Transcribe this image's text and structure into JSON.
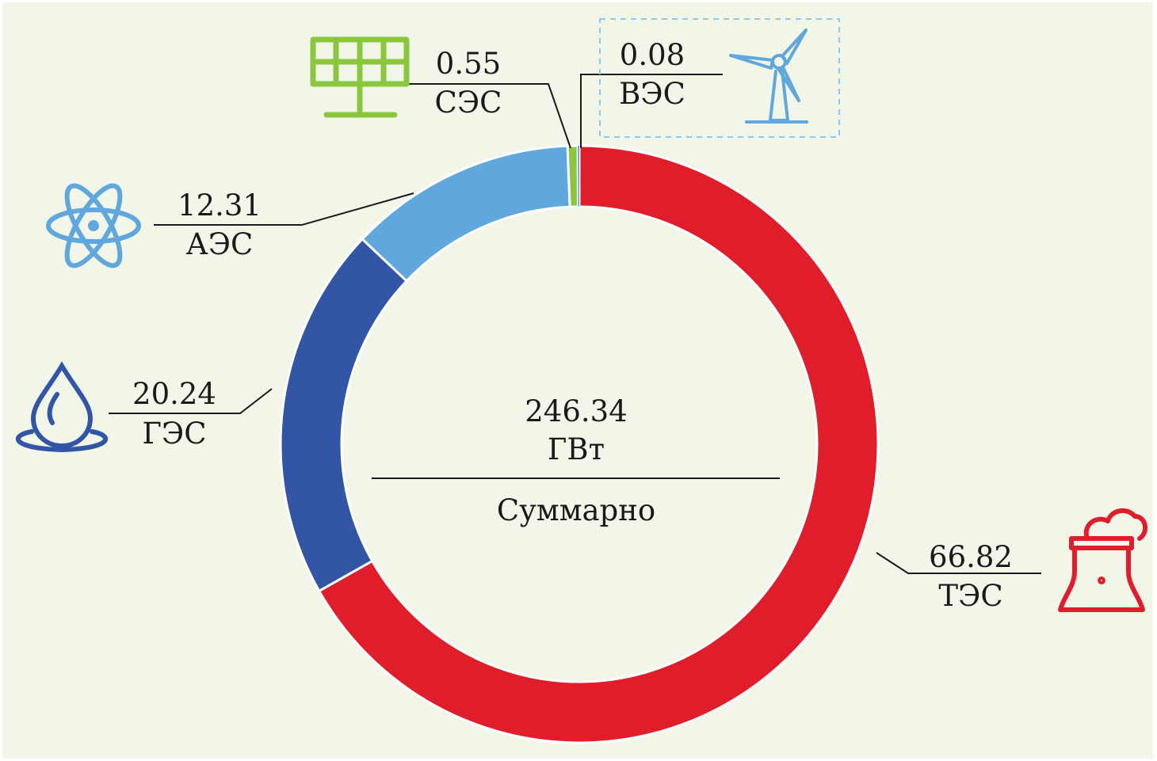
{
  "chart_data": {
    "type": "donut",
    "unit": "ГВт",
    "total": {
      "value": "246.34",
      "unit_label": "ГВт",
      "caption": "Суммарно"
    },
    "series": [
      {
        "name": "ТЭС",
        "value_label": "66.82",
        "share": 0.6682,
        "color": "#e01e2b",
        "icon": "thermal-plant-icon"
      },
      {
        "name": "ГЭС",
        "value_label": "20.24",
        "share": 0.2024,
        "color": "#3355a6",
        "icon": "water-drop-icon"
      },
      {
        "name": "АЭС",
        "value_label": "12.31",
        "share": 0.1231,
        "color": "#5fa7dc",
        "icon": "atom-icon"
      },
      {
        "name": "СЭС",
        "value_label": "0.55",
        "share": 0.0055,
        "color": "#8cc63f",
        "icon": "solar-panel-icon"
      },
      {
        "name": "ВЭС",
        "value_label": "0.08",
        "share": 0.0008,
        "color": "#5fa7dc",
        "icon": "wind-turbine-icon"
      }
    ],
    "start_angle_deg": 0,
    "direction": "clockwise"
  },
  "colors": {
    "background": "#f1f6e9",
    "leader_line": "#1a1a1a",
    "separator": "#ffffff",
    "wind_box_border": "#8ec8ea"
  }
}
